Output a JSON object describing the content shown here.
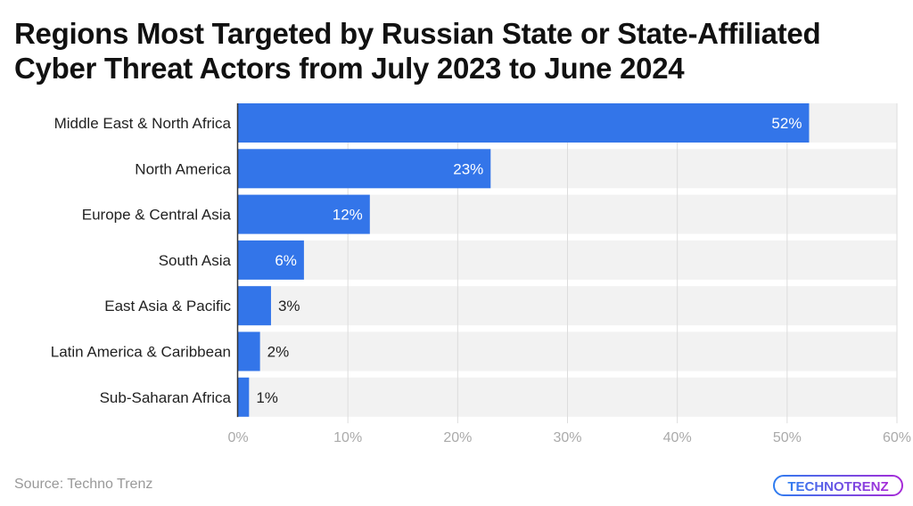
{
  "chart_data": {
    "type": "bar",
    "orientation": "horizontal",
    "title": "Regions Most Targeted by Russian State or State-Affiliated Cyber Threat Actors from July 2023 to June 2024",
    "categories": [
      "Middle East & North Africa",
      "North America",
      "Europe & Central Asia",
      "South Asia",
      "East Asia & Pacific",
      "Latin America & Caribbean",
      "Sub-Saharan Africa"
    ],
    "values": [
      52,
      23,
      12,
      6,
      3,
      2,
      1
    ],
    "data_labels": [
      "52%",
      "23%",
      "12%",
      "6%",
      "3%",
      "2%",
      "1%"
    ],
    "xlim": [
      0,
      60
    ],
    "x_ticks": [
      "0%",
      "10%",
      "20%",
      "30%",
      "40%",
      "50%",
      "60%"
    ],
    "grid": true,
    "colors": {
      "bar": "#3375e9",
      "band": "#f2f2f2",
      "grid": "#dddddd"
    }
  },
  "source": "Source: Techno Trenz",
  "logo_text": "TECHNOTRENZ"
}
